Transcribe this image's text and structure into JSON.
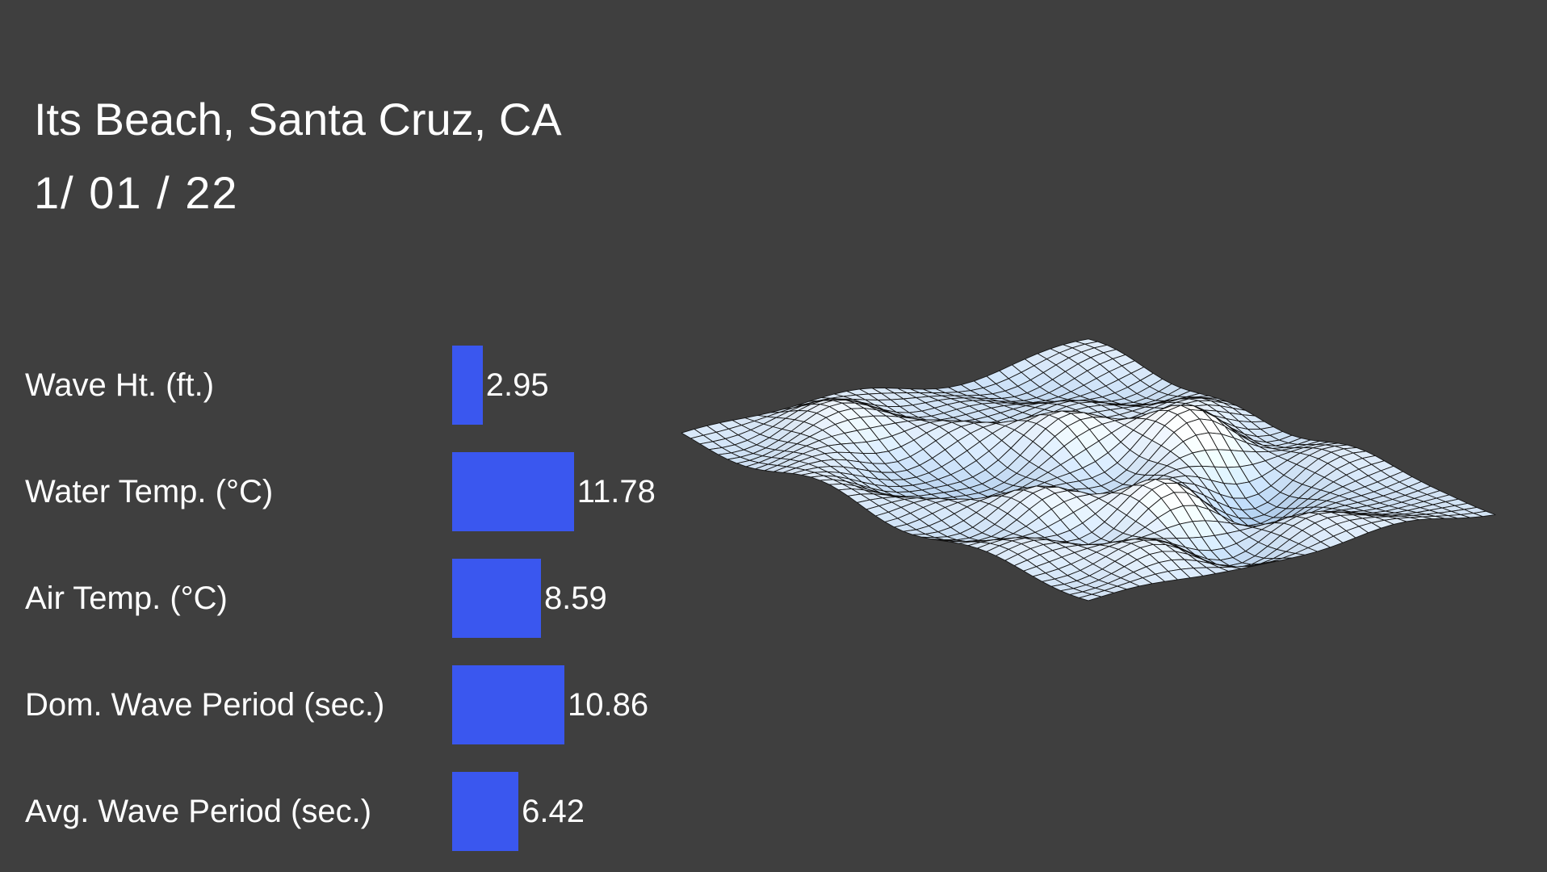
{
  "page": {
    "title": "Its Beach, Santa Cruz, CA",
    "date": "1/ 01 / 22"
  },
  "colors": {
    "background": "#3f3f3f",
    "bar": "#3a57ef",
    "text": "#ffffff",
    "surface_low": "#b0cdec",
    "surface_high": "#ffffff",
    "surface_stroke": "#141414"
  },
  "chart_data": [
    {
      "type": "bar",
      "orientation": "horizontal",
      "categories": [
        "Wave Ht. (ft.)",
        "Water Temp. (°C)",
        "Air Temp. (°C)",
        "Dom. Wave Period (sec.)",
        "Avg. Wave Period (sec.)"
      ],
      "values": [
        2.95,
        11.78,
        8.59,
        10.86,
        6.42
      ],
      "value_labels": [
        "2.95",
        "11.78",
        "8.59",
        "10.86",
        "6.42"
      ],
      "bar_color": "#3a57ef",
      "title": "",
      "xlim": [
        0,
        12
      ],
      "grid": false,
      "legend": "none"
    },
    {
      "type": "area",
      "subtype": "3d-wireframe-surface",
      "description": "Decorative 3D wireframe wave-surface mesh, light blue to white shading with dark grid lines, no axes or labels",
      "grid_cells": [
        44,
        32
      ],
      "stroke": "#141414",
      "fill_low": "#b0cdec",
      "fill_high": "#ffffff"
    }
  ]
}
